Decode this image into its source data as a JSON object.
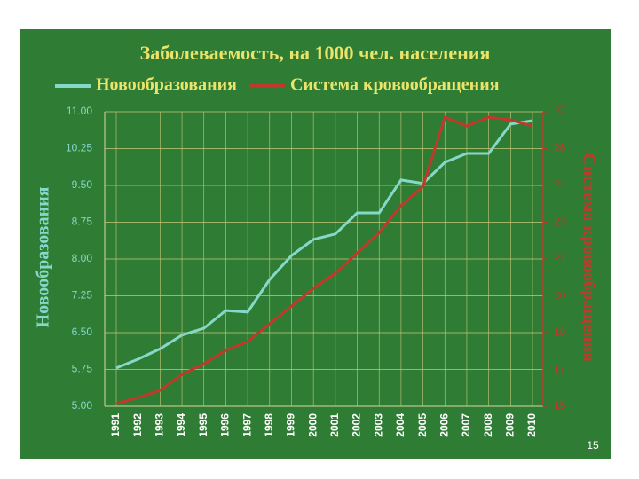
{
  "chart_data": {
    "type": "line",
    "title": "Заболеваемость, на 1000 чел. населения",
    "y_label": "Новообразования",
    "y2_label": "Система кровообращения",
    "categories": [
      "1991",
      "1992",
      "1993",
      "1994",
      "1995",
      "1996",
      "1997",
      "1998",
      "1999",
      "2000",
      "2001",
      "2002",
      "2003",
      "2004",
      "2005",
      "2006",
      "2007",
      "2008",
      "2009",
      "2010"
    ],
    "series": [
      {
        "name": "Новообразования",
        "color": "#86d8c8",
        "axis": "y",
        "values": [
          5.78,
          5.96,
          6.17,
          6.45,
          6.59,
          6.95,
          6.92,
          7.58,
          8.07,
          8.4,
          8.51,
          8.94,
          8.94,
          9.61,
          9.54,
          9.97,
          10.15,
          10.15,
          10.75,
          10.82
        ]
      },
      {
        "name": "Система кровообращения",
        "color": "#c0392b",
        "axis": "y2",
        "values": [
          15.1,
          15.36,
          15.65,
          16.3,
          16.73,
          17.28,
          17.64,
          18.36,
          19.08,
          19.81,
          20.42,
          21.25,
          22.08,
          23.17,
          23.96,
          26.78,
          26.42,
          26.78,
          26.67,
          26.42
        ]
      }
    ],
    "ylim": [
      5,
      11
    ],
    "yticks": [
      {
        "value": 5,
        "label": "5.00"
      },
      {
        "value": 5.75,
        "label": "5.75"
      },
      {
        "value": 6.5,
        "label": "6.50"
      },
      {
        "value": 7.25,
        "label": "7.25"
      },
      {
        "value": 8,
        "label": "8.00"
      },
      {
        "value": 8.75,
        "label": "8.75"
      },
      {
        "value": 9.5,
        "label": "9.50"
      },
      {
        "value": 10.25,
        "label": "10.25"
      },
      {
        "value": 11,
        "label": "11.00"
      }
    ],
    "y2lim": [
      15,
      27
    ],
    "y2ticks": [
      15,
      {
        "value": 16.5,
        "label": "17"
      },
      18,
      {
        "value": 19.5,
        "label": "20"
      },
      21,
      {
        "value": 22.5,
        "label": "23"
      },
      24,
      {
        "value": 25.5,
        "label": "26"
      },
      27
    ],
    "grid": true,
    "legend": "top"
  },
  "slide": {
    "page_number": "15"
  }
}
